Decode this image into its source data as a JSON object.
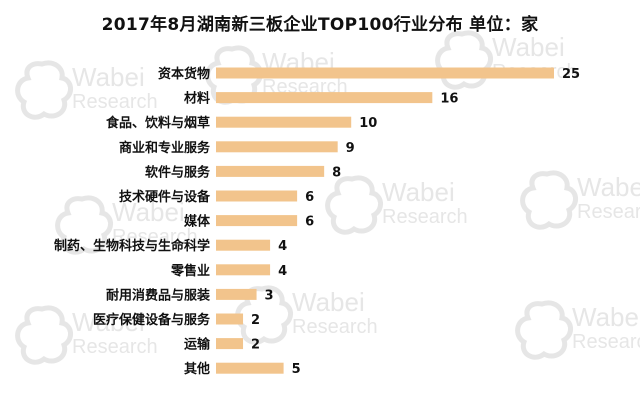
{
  "watermark": {
    "brand": "Wabei",
    "subbrand": "Research",
    "color": "#d2d2d2"
  },
  "colors": {
    "bar": "#f2c48c",
    "text": "#111111"
  },
  "chart_data": {
    "type": "bar",
    "orientation": "horizontal",
    "title": "2017年8月湖南新三板企业TOP100行业分布  单位：家",
    "categories": [
      "资本货物",
      "材料",
      "食品、饮料与烟草",
      "商业和专业服务",
      "软件与服务",
      "技术硬件与设备",
      "媒体",
      "制药、生物科技与生命科学",
      "零售业",
      "耐用消费品与服装",
      "医疗保健设备与服务",
      "运输",
      "其他"
    ],
    "values": [
      25,
      16,
      10,
      9,
      8,
      6,
      6,
      4,
      4,
      3,
      2,
      2,
      5
    ],
    "xlim": [
      0,
      25
    ],
    "grid": false,
    "legend": "none",
    "data_labels": true
  }
}
